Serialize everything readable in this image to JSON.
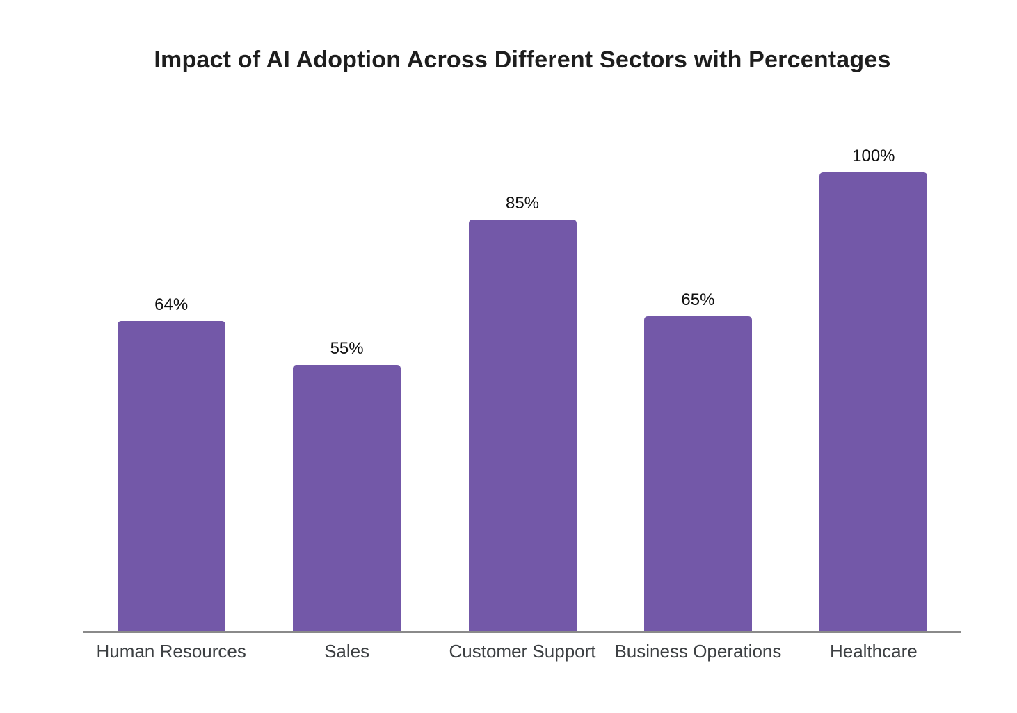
{
  "chart_data": {
    "type": "bar",
    "title": "Impact of AI Adoption Across Different Sectors with Percentages",
    "categories": [
      "Human Resources",
      "Sales",
      "Customer Support",
      "Business Operations",
      "Healthcare"
    ],
    "values": [
      64,
      55,
      85,
      65,
      100
    ],
    "value_labels": [
      "64%",
      "55%",
      "85%",
      "65%",
      "100%"
    ],
    "xlabel": "",
    "ylabel": "",
    "ylim": [
      0,
      100
    ],
    "grid": false,
    "legend": false,
    "layout": {
      "value_labels_position": "above-bars",
      "y_axis_visible": false,
      "x_axis_line_visible": true
    },
    "colors": {
      "bar": "#7358A8",
      "axis_line": "#8A8A8A",
      "title": "#1E1E1E",
      "value_label": "#0F0F0F",
      "tick_label": "#3D4043",
      "background": "#FFFFFF"
    }
  }
}
